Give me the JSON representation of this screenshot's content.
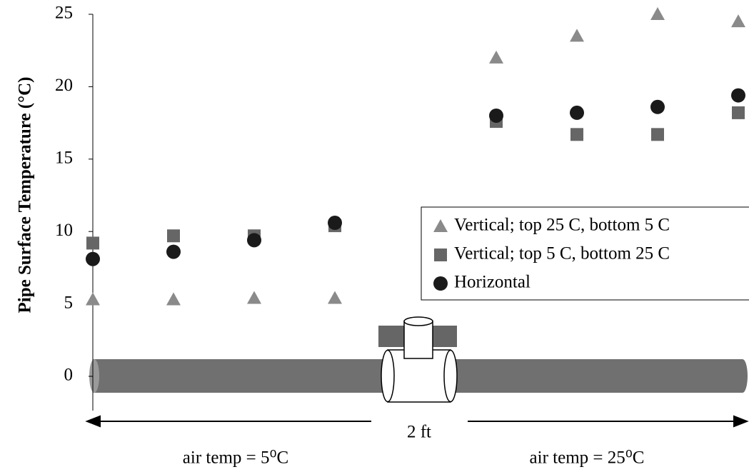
{
  "chart_data": {
    "type": "scatter",
    "y_label": "Pipe Surface Temperature (°C)",
    "annotations": [
      "2 ft",
      "air temp =  5⁰C",
      "air temp = 25⁰C"
    ],
    "categories": [
      null,
      null,
      null,
      null,
      null,
      null,
      null,
      null,
      null
    ],
    "ylim": [
      0,
      25
    ],
    "yticks": [
      0,
      5,
      10,
      15,
      20,
      25
    ],
    "legend": "right",
    "series": [
      {
        "name": "Vertical; top 25 C, bottom 5 C",
        "color": "#8a8a8a",
        "marker": "triangle",
        "values": [
          5.3,
          5.3,
          5.4,
          5.4,
          null,
          22.0,
          23.5,
          25.0,
          24.5
        ]
      },
      {
        "name": "Vertical; top 5 C, bottom 25 C",
        "color": "#666666",
        "marker": "square",
        "values": [
          9.2,
          9.7,
          9.7,
          10.4,
          null,
          17.6,
          16.7,
          16.7,
          18.2
        ]
      },
      {
        "name": "Horizontal",
        "color": "#1a1a1a",
        "marker": "circle",
        "values": [
          8.1,
          8.6,
          9.4,
          10.6,
          null,
          18.0,
          18.2,
          18.6,
          19.4
        ]
      }
    ]
  }
}
